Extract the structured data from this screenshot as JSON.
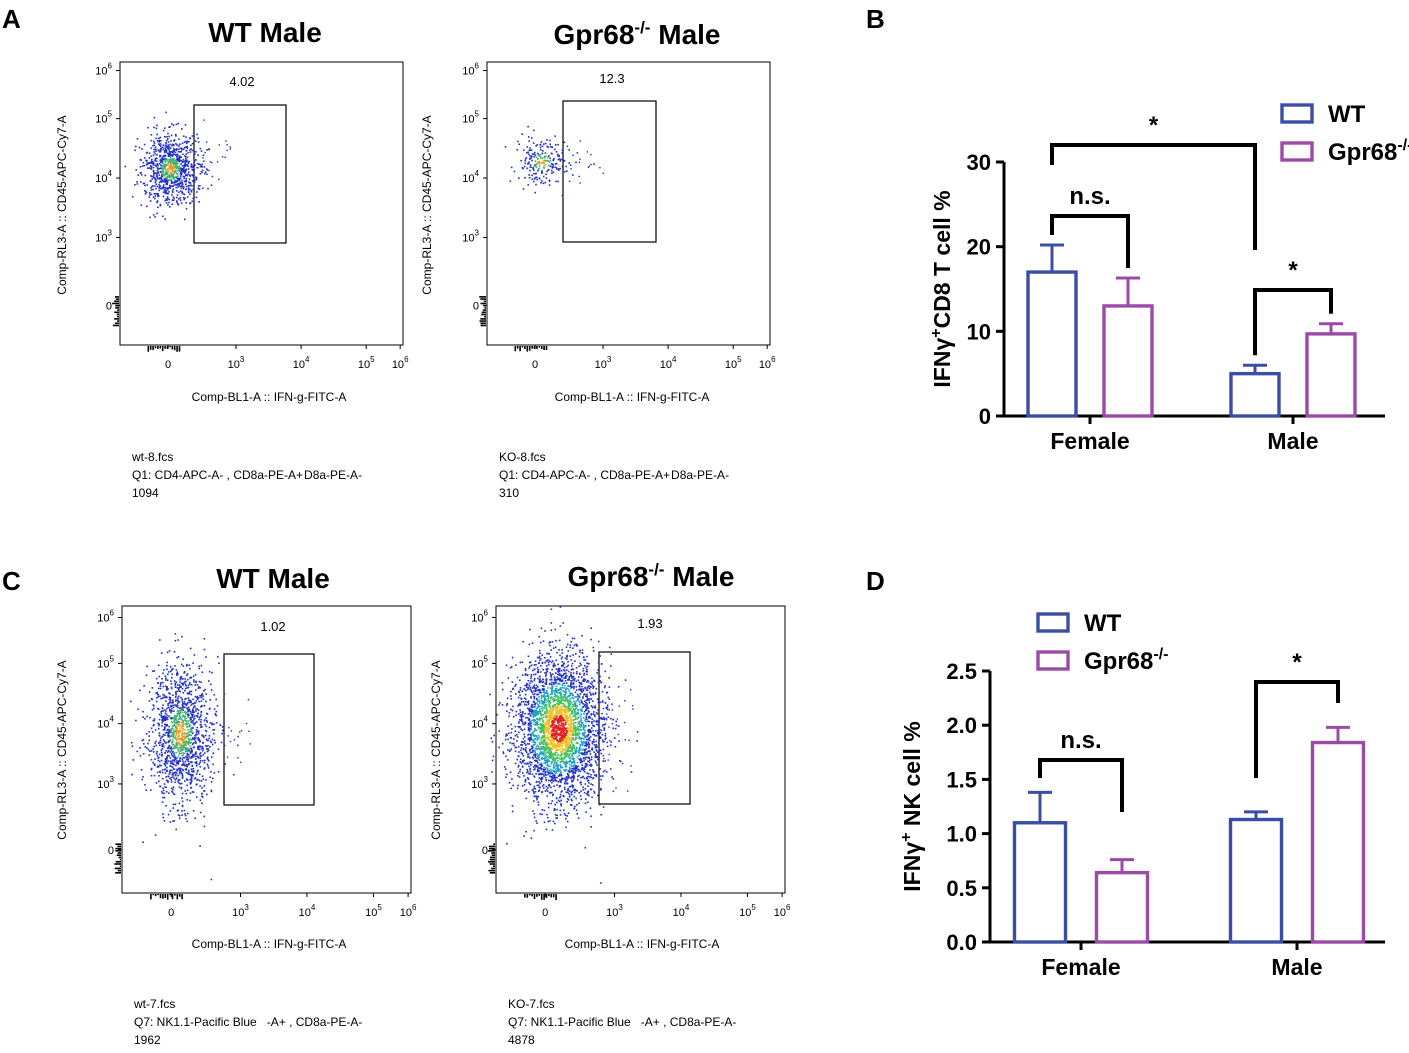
{
  "colors": {
    "wt": "#3b4ea6",
    "ko": "#9b4aa8",
    "axis": "#000000",
    "gate": "#000000"
  },
  "panels": {
    "A": {
      "label": "A",
      "plots": [
        {
          "title": "WT Male",
          "gate_value": "4.02",
          "xlabel": "Comp-BL1-A :: IFN-g-FITC-A",
          "ylabel": "Comp-RL3-A :: CD45-APC-Cy7-A",
          "file": "wt-8.fcs",
          "population": "Q1: CD4-APC-A- , CD8a-PE-A+",
          "population_tail": "D8a-PE-A-",
          "count": "1094"
        },
        {
          "title_main": "Gpr68",
          "title_sup": "-/-",
          "title_tail": " Male",
          "gate_value": "12.3",
          "xlabel": "Comp-BL1-A :: IFN-g-FITC-A",
          "ylabel": "Comp-RL3-A :: CD45-APC-Cy7-A",
          "file": "KO-8.fcs",
          "population": "Q1: CD4-APC-A- , CD8a-PE-A+",
          "population_tail": "D8a-PE-A-",
          "count": "310"
        }
      ],
      "xticks": [
        "0",
        "10",
        "10",
        "10",
        "10"
      ],
      "xtick_exp": [
        "",
        "3",
        "4",
        "5",
        "6"
      ],
      "yticks": [
        "0",
        "10",
        "10",
        "10",
        "10"
      ],
      "ytick_exp": [
        "",
        "3",
        "4",
        "5",
        "6"
      ]
    },
    "C": {
      "label": "C",
      "plots": [
        {
          "title": "WT Male",
          "gate_value": "1.02",
          "xlabel": "Comp-BL1-A :: IFN-g-FITC-A",
          "ylabel": "Comp-RL3-A :: CD45-APC-Cy7-A",
          "file": "wt-7.fcs",
          "population": "Q7: NK1.1-Pacific Blue   -A+ , CD8a-PE-A-",
          "count": "1962"
        },
        {
          "title_main": "Gpr68",
          "title_sup": "-/-",
          "title_tail": " Male",
          "gate_value": "1.93",
          "xlabel": "Comp-BL1-A :: IFN-g-FITC-A",
          "ylabel": "Comp-RL3-A :: CD45-APC-Cy7-A",
          "file": "KO-7.fcs",
          "population": "Q7: NK1.1-Pacific Blue   -A+ , CD8a-PE-A-",
          "count": "4878"
        }
      ]
    },
    "B": {
      "label": "B"
    },
    "D": {
      "label": "D"
    }
  },
  "chart_data": [
    {
      "panel": "B",
      "type": "bar",
      "categories": [
        "Female",
        "Male"
      ],
      "series": [
        {
          "name": "WT",
          "values": [
            17.0,
            5.0
          ],
          "errors": [
            3.2,
            1.0
          ]
        },
        {
          "name": "Gpr68-/-",
          "values": [
            13.0,
            9.7
          ],
          "errors": [
            3.3,
            1.2
          ]
        }
      ],
      "ylabel_parts": {
        "pre": "IFNγ",
        "sup": "+",
        "post": "CD8 T cell %"
      },
      "ylim": [
        0,
        30
      ],
      "yticks": [
        0,
        10,
        20,
        30
      ],
      "legend": {
        "position": "top-right",
        "entries": [
          {
            "text": "WT"
          },
          {
            "text": "Gpr68",
            "sup": "-/-"
          }
        ]
      },
      "annotations": [
        {
          "text": "n.s.",
          "between": "Female WT vs Female Gpr68-/-"
        },
        {
          "text": "*",
          "between": "Male WT vs Male Gpr68-/-"
        },
        {
          "text": "*",
          "between": "Female WT vs Male WT"
        }
      ]
    },
    {
      "panel": "D",
      "type": "bar",
      "categories": [
        "Female",
        "Male"
      ],
      "series": [
        {
          "name": "WT",
          "values": [
            1.1,
            1.13
          ],
          "errors": [
            0.28,
            0.07
          ]
        },
        {
          "name": "Gpr68-/-",
          "values": [
            0.64,
            1.84
          ],
          "errors": [
            0.12,
            0.14
          ]
        }
      ],
      "ylabel_parts": {
        "pre": "IFNγ",
        "sup": "+",
        "post": " NK cell %"
      },
      "ylim": [
        0,
        2.5
      ],
      "yticks": [
        "0.0",
        "0.5",
        "1.0",
        "1.5",
        "2.0",
        "2.5"
      ],
      "legend": {
        "position": "top-left",
        "entries": [
          {
            "text": "WT"
          },
          {
            "text": "Gpr68",
            "sup": "-/-"
          }
        ]
      },
      "annotations": [
        {
          "text": "n.s.",
          "between": "Female WT vs Female Gpr68-/-"
        },
        {
          "text": "*",
          "between": "Male WT vs Male Gpr68-/-"
        }
      ]
    }
  ]
}
